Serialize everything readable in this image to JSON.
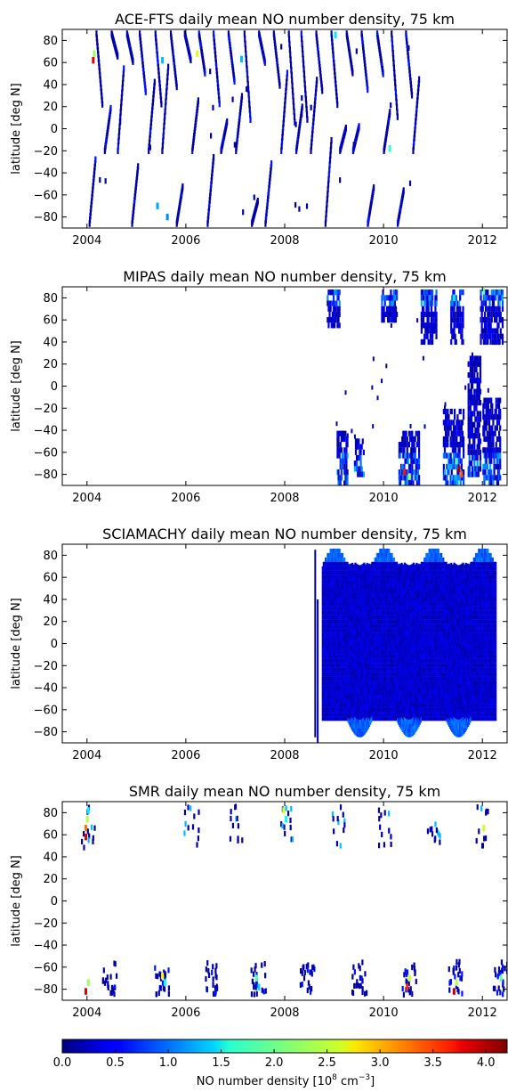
{
  "chart_data": [
    {
      "type": "heatmap",
      "title": "ACE-FTS daily mean NO number density, 75 km",
      "ylabel": "latitude [deg N]",
      "xlim": [
        2003.5,
        2012.5
      ],
      "ylim": [
        -90,
        90
      ],
      "xticks": [
        "2004",
        "2006",
        "2008",
        "2010",
        "2012"
      ],
      "yticks": [
        "80",
        "60",
        "40",
        "20",
        "0",
        "−20",
        "−40",
        "−60",
        "−80"
      ],
      "grid": false,
      "sampling": "sparse",
      "data_extent": [
        2004.0,
        2010.7
      ],
      "nh_max": 86,
      "sh_min": -86,
      "points": [
        {
          "t": 2004.1,
          "lat": 62,
          "v": 3.8
        },
        {
          "t": 2004.12,
          "lat": 68,
          "v": 2.2
        },
        {
          "t": 2005.5,
          "lat": 62,
          "v": 1.3
        },
        {
          "t": 2006.2,
          "lat": 68,
          "v": 2.5
        },
        {
          "t": 2007.1,
          "lat": 63,
          "v": 1.3
        },
        {
          "t": 2009.0,
          "lat": 85,
          "v": 1.5
        },
        {
          "t": 2010.1,
          "lat": -18,
          "v": 1.8
        },
        {
          "t": 2005.4,
          "lat": -70,
          "v": 1.2
        },
        {
          "t": 2005.6,
          "lat": -80,
          "v": 1.1
        }
      ]
    },
    {
      "type": "heatmap",
      "title": "MIPAS daily mean NO number density, 75 km",
      "ylabel": "latitude [deg N]",
      "xlim": [
        2003.5,
        2012.5
      ],
      "ylim": [
        -90,
        90
      ],
      "xticks": [
        "2004",
        "2006",
        "2008",
        "2010",
        "2012"
      ],
      "yticks": [
        "80",
        "60",
        "40",
        "20",
        "0",
        "−20",
        "−40",
        "−60",
        "−80"
      ],
      "grid": false,
      "sampling": "mipas",
      "data_extent": [
        2008.8,
        2012.4
      ],
      "points": [
        {
          "t": 2010.4,
          "lat": -78,
          "v": 3.6
        },
        {
          "t": 2010.5,
          "lat": -82,
          "v": 2.3
        },
        {
          "t": 2011.5,
          "lat": -75,
          "v": 4.0
        },
        {
          "t": 2011.55,
          "lat": -80,
          "v": 3.3
        },
        {
          "t": 2011.45,
          "lat": -68,
          "v": 1.9
        },
        {
          "t": 2012.0,
          "lat": 86,
          "v": 2.0
        },
        {
          "t": 2011.4,
          "lat": 80,
          "v": 1.5
        }
      ]
    },
    {
      "type": "heatmap",
      "title": "SCIAMACHY daily mean NO number density, 75 km",
      "ylabel": "latitude [deg N]",
      "xlim": [
        2003.5,
        2012.5
      ],
      "ylim": [
        -90,
        90
      ],
      "xticks": [
        "2004",
        "2006",
        "2008",
        "2010",
        "2012"
      ],
      "yticks": [
        "80",
        "60",
        "40",
        "20",
        "0",
        "−20",
        "−40",
        "−60",
        "−80"
      ],
      "grid": false,
      "sampling": "dense",
      "data_extent": [
        2008.75,
        2012.25
      ],
      "nh_max": 85,
      "sh_min": -85,
      "points": []
    },
    {
      "type": "heatmap",
      "title": "SMR daily mean NO number density, 75 km",
      "ylabel": "latitude [deg N]",
      "xlim": [
        2003.5,
        2012.5
      ],
      "ylim": [
        -90,
        90
      ],
      "xticks": [
        "2004",
        "2006",
        "2008",
        "2010",
        "2012"
      ],
      "yticks": [
        "80",
        "60",
        "40",
        "20",
        "0",
        "−20",
        "−40",
        "−60",
        "−80"
      ],
      "grid": false,
      "sampling": "smr",
      "data_extent": [
        2003.9,
        2012.4
      ],
      "points": [
        {
          "t": 2003.95,
          "lat": 58,
          "v": 3.8
        },
        {
          "t": 2003.95,
          "lat": 66,
          "v": 3.2
        },
        {
          "t": 2003.98,
          "lat": 74,
          "v": 2.3
        },
        {
          "t": 2004.0,
          "lat": 82,
          "v": 1.5
        },
        {
          "t": 2003.95,
          "lat": -82,
          "v": 3.8
        },
        {
          "t": 2004.0,
          "lat": -74,
          "v": 2.2
        },
        {
          "t": 2005.5,
          "lat": -68,
          "v": 2.6
        },
        {
          "t": 2005.55,
          "lat": -74,
          "v": 1.6
        },
        {
          "t": 2007.4,
          "lat": -70,
          "v": 1.9
        },
        {
          "t": 2007.45,
          "lat": -78,
          "v": 1.4
        },
        {
          "t": 2007.95,
          "lat": 82,
          "v": 2.4
        },
        {
          "t": 2008.0,
          "lat": 74,
          "v": 1.6
        },
        {
          "t": 2010.45,
          "lat": -78,
          "v": 3.5
        },
        {
          "t": 2010.5,
          "lat": -70,
          "v": 2.4
        },
        {
          "t": 2011.4,
          "lat": -82,
          "v": 3.9
        },
        {
          "t": 2011.45,
          "lat": -74,
          "v": 2.3
        },
        {
          "t": 2012.0,
          "lat": 66,
          "v": 2.4
        },
        {
          "t": 2012.35,
          "lat": -70,
          "v": 2.0
        }
      ]
    }
  ],
  "colorbar": {
    "label_main": "NO number density [10",
    "label_exp1": "8",
    "label_mid": " cm",
    "label_exp2": "−3",
    "label_end": "]",
    "min": 0.0,
    "max": 4.2,
    "ticks": [
      "0.0",
      "0.5",
      "1.0",
      "1.5",
      "2.0",
      "2.5",
      "3.0",
      "3.5",
      "4.0"
    ],
    "colormap": "jet"
  }
}
